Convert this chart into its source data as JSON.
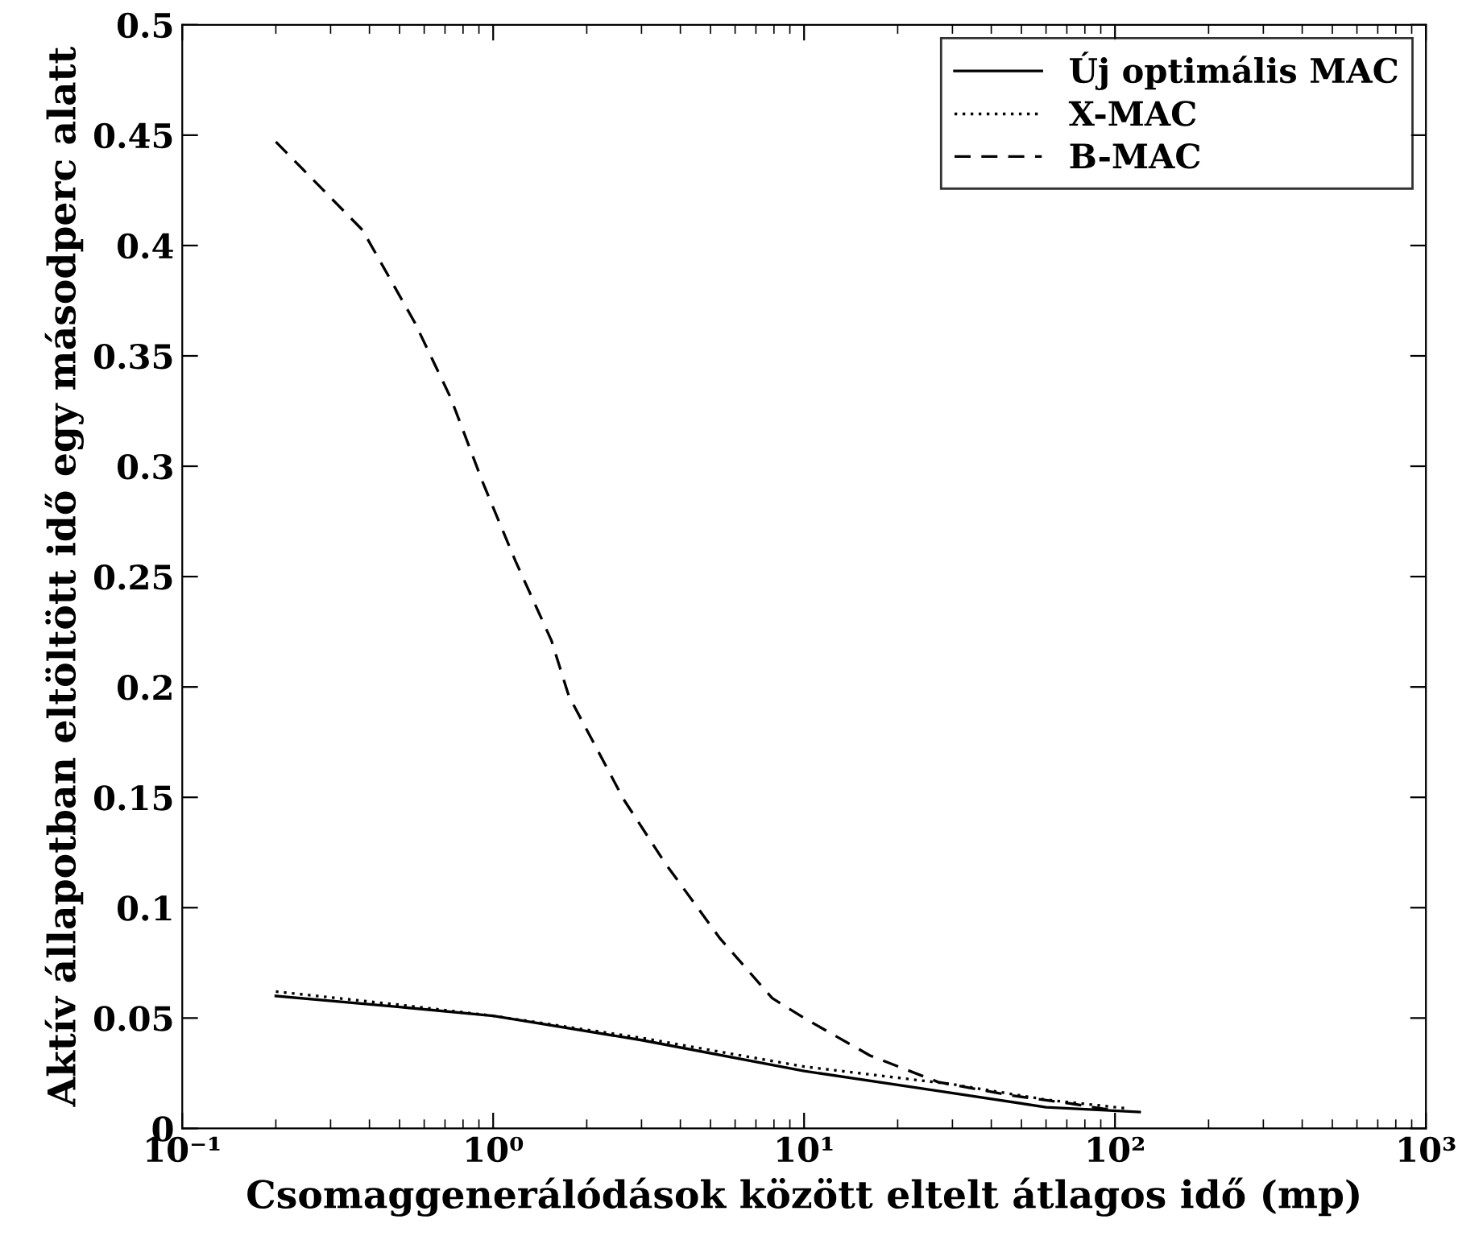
{
  "chart_data": {
    "type": "line",
    "xlabel": "Csomaggenerálódások között eltelt átlagos idő (mp)",
    "ylabel": "Aktív állapotban eltöltött idő egy másodperc alatt",
    "log": "x",
    "xlim": [
      0.1,
      1000
    ],
    "xticks": [
      {
        "value": 0.1,
        "label": "10⁻¹"
      },
      {
        "value": 1,
        "label": "10⁰"
      },
      {
        "value": 10,
        "label": "10¹"
      },
      {
        "value": 100,
        "label": "10²"
      },
      {
        "value": 1000,
        "label": "10³"
      }
    ],
    "ylim": [
      0,
      0.5
    ],
    "yticks": [
      0,
      0.05,
      0.1,
      0.15,
      0.2,
      0.25,
      0.3,
      0.35,
      0.4,
      0.45,
      0.5
    ],
    "grid": false,
    "legend": "top right",
    "series": [
      {
        "name": "Új optimális MAC",
        "color": "#000000",
        "line_style": "solid",
        "x": [
          0.2,
          0.5,
          1,
          3,
          10,
          27,
          60,
          120
        ],
        "values": [
          0.06,
          0.055,
          0.051,
          0.04,
          0.026,
          0.017,
          0.0096,
          0.0074
        ]
      },
      {
        "name": "X-MAC",
        "color": "#000000",
        "line_style": "dotted",
        "x": [
          0.2,
          0.5,
          1,
          3,
          10,
          30,
          60,
          110
        ],
        "values": [
          0.062,
          0.056,
          0.051,
          0.041,
          0.028,
          0.02,
          0.013,
          0.009
        ]
      },
      {
        "name": "B-MAC",
        "color": "#000000",
        "line_style": "dashed",
        "x": [
          0.2,
          0.38,
          0.56,
          0.73,
          0.93,
          1.18,
          1.54,
          1.75,
          2.63,
          3.58,
          5.37,
          7.9,
          10,
          16.3,
          27,
          46,
          74,
          100
        ],
        "values": [
          0.447,
          0.407,
          0.365,
          0.331,
          0.292,
          0.257,
          0.221,
          0.196,
          0.149,
          0.12,
          0.086,
          0.059,
          0.05,
          0.033,
          0.021,
          0.015,
          0.011,
          0.008
        ]
      }
    ]
  }
}
